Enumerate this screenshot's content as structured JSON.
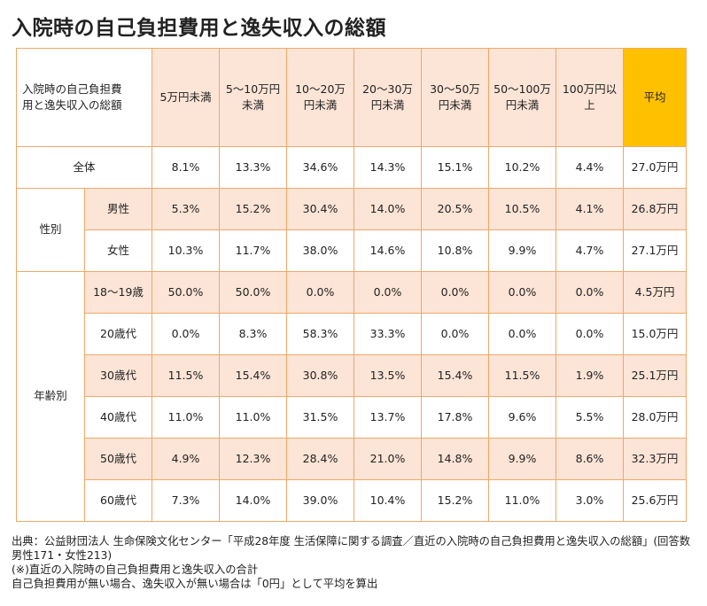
{
  "title": "入院時の自己負担費用と逸失収入の総額",
  "chart_data": {
    "type": "table",
    "corner_label": [
      "入院時の自己負担費",
      "用と逸失収入の総額"
    ],
    "columns": [
      [
        "5万円未満"
      ],
      [
        "5〜10万円",
        "未満"
      ],
      [
        "10〜20万",
        "円未満"
      ],
      [
        "20〜30万",
        "円未満"
      ],
      [
        "30〜50万",
        "円未満"
      ],
      [
        "50〜100万",
        "円未満"
      ],
      [
        "100万円以",
        "上"
      ],
      [
        "平均"
      ]
    ],
    "rows": [
      {
        "group": "全体",
        "label": "",
        "values": [
          "8.1%",
          "13.3%",
          "34.6%",
          "14.3%",
          "15.1%",
          "10.2%",
          "4.4%",
          "27.0万円"
        ]
      },
      {
        "group": "性別",
        "label": "男性",
        "values": [
          "5.3%",
          "15.2%",
          "30.4%",
          "14.0%",
          "20.5%",
          "10.5%",
          "4.1%",
          "26.8万円"
        ]
      },
      {
        "group": "性別",
        "label": "女性",
        "values": [
          "10.3%",
          "11.7%",
          "38.0%",
          "14.6%",
          "10.8%",
          "9.9%",
          "4.7%",
          "27.1万円"
        ]
      },
      {
        "group": "年齢別",
        "label": "18〜19歳",
        "values": [
          "50.0%",
          "50.0%",
          "0.0%",
          "0.0%",
          "0.0%",
          "0.0%",
          "0.0%",
          "4.5万円"
        ]
      },
      {
        "group": "年齢別",
        "label": "20歳代",
        "values": [
          "0.0%",
          "8.3%",
          "58.3%",
          "33.3%",
          "0.0%",
          "0.0%",
          "0.0%",
          "15.0万円"
        ]
      },
      {
        "group": "年齢別",
        "label": "30歳代",
        "values": [
          "11.5%",
          "15.4%",
          "30.8%",
          "13.5%",
          "15.4%",
          "11.5%",
          "1.9%",
          "25.1万円"
        ]
      },
      {
        "group": "年齢別",
        "label": "40歳代",
        "values": [
          "11.0%",
          "11.0%",
          "31.5%",
          "13.7%",
          "17.8%",
          "9.6%",
          "5.5%",
          "28.0万円"
        ]
      },
      {
        "group": "年齢別",
        "label": "50歳代",
        "values": [
          "4.9%",
          "12.3%",
          "28.4%",
          "21.0%",
          "14.8%",
          "9.9%",
          "8.6%",
          "32.3万円"
        ]
      },
      {
        "group": "年齢別",
        "label": "60歳代",
        "values": [
          "7.3%",
          "14.0%",
          "39.0%",
          "10.4%",
          "15.2%",
          "11.0%",
          "3.0%",
          "25.6万円"
        ]
      }
    ],
    "shaded_rows": [
      1,
      3,
      5,
      7
    ]
  },
  "colors": {
    "header_bg": "#FCE4D6",
    "shade_bg": "#FCE4D6",
    "average_header_bg": "#FFC000",
    "border": "#F0A868"
  },
  "notes": [
    "出典：公益財団法人 生命保険文化センター「平成28年度 生活保障に関する調査／直近の入院時の自己負担費用と逸失収入の総額」(回答数男性171・女性213)",
    "(※)直近の入院時の自己負担費用と逸失収入の合計",
    "自己負担費用が無い場合、逸失収入が無い場合は「0円」として平均を算出"
  ]
}
